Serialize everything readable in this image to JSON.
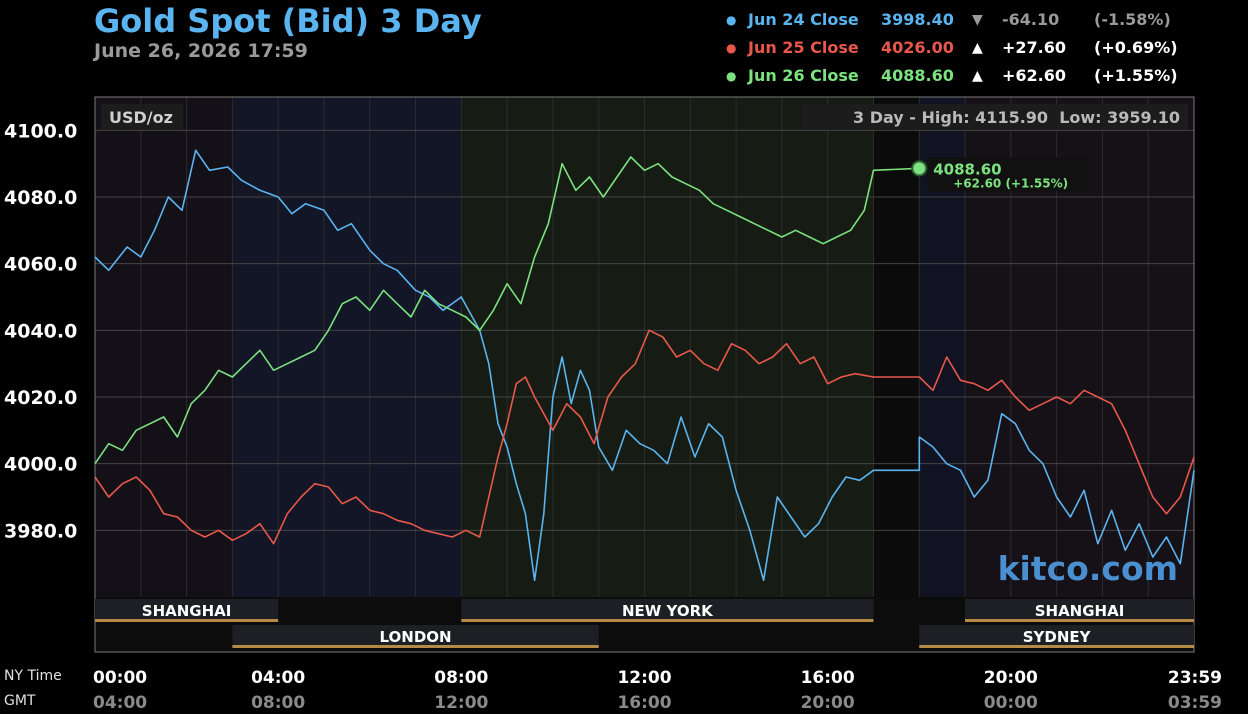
{
  "header": {
    "title": "Gold Spot (Bid) 3 Day",
    "datetime": "June 26, 2026 17:59"
  },
  "legend": [
    {
      "dot": "●",
      "name": "Jun 24 Close",
      "price": "3998.40",
      "arrow": "▼",
      "change": "-64.10",
      "pct": "(-1.58%)",
      "color": "#5ab4f0",
      "change_color": "#9a9a9a"
    },
    {
      "dot": "●",
      "name": "Jun 25 Close",
      "price": "4026.00",
      "arrow": "▲",
      "change": "+27.60",
      "pct": "(+0.69%)",
      "color": "#e8584a",
      "change_color": "#ffffff"
    },
    {
      "dot": "●",
      "name": "Jun 26 Close",
      "price": "4088.60",
      "arrow": "▲",
      "change": "+62.60",
      "pct": "(+1.55%)",
      "color": "#7be27f",
      "change_color": "#ffffff"
    }
  ],
  "chart_data": {
    "type": "line",
    "unit_label": "USD/oz",
    "range_label": "3 Day - High: 4115.90  Low: 3959.10",
    "ylim": [
      3960,
      4110
    ],
    "yticks": [
      3980,
      4000,
      4020,
      4040,
      4060,
      4080,
      4100
    ],
    "ytick_labels": [
      "3980.0",
      "4000.0",
      "4020.0",
      "4040.0",
      "4060.0",
      "4080.0",
      "4100.0"
    ],
    "x_unit": "hours (NY time)",
    "xlim": [
      0,
      24
    ],
    "x_ticks": [
      0,
      4,
      8,
      12,
      16,
      20,
      24
    ],
    "x_tick_labels_ny": [
      "00:00",
      "04:00",
      "08:00",
      "12:00",
      "16:00",
      "20:00",
      "23:59"
    ],
    "x_tick_labels_gmt": [
      "04:00",
      "08:00",
      "12:00",
      "16:00",
      "20:00",
      "00:00",
      "03:59"
    ],
    "x_row_labels": [
      "NY Time",
      "GMT"
    ],
    "last_point": {
      "price": "4088.60",
      "change": "+62.60 (+1.55%)",
      "x": 18.0,
      "y": 4088.6
    },
    "watermark": "kitco.com",
    "sessions": [
      {
        "name": "SHANGHAI",
        "start": 0,
        "end": 4,
        "row": 1
      },
      {
        "name": "NEW YORK",
        "start": 8,
        "end": 17,
        "row": 1
      },
      {
        "name": "SHANGHAI",
        "start": 19,
        "end": 24,
        "row": 1
      },
      {
        "name": "LONDON",
        "start": 3,
        "end": 11,
        "row": 2
      },
      {
        "name": "SYDNEY",
        "start": 18,
        "end": 24,
        "row": 2
      }
    ],
    "background_regions": [
      {
        "start": 0,
        "end": 3,
        "color": "#141018"
      },
      {
        "start": 3,
        "end": 8,
        "color": "#121626"
      },
      {
        "start": 8,
        "end": 17,
        "color": "#161c13"
      },
      {
        "start": 17,
        "end": 18,
        "color": "#0b0b0b"
      },
      {
        "start": 18,
        "end": 19,
        "color": "#111322"
      },
      {
        "start": 19,
        "end": 24,
        "color": "#161017"
      }
    ],
    "series": [
      {
        "name": "Jun 24 Close",
        "color": "#5ab4f0",
        "x": [
          0,
          0.3,
          0.7,
          1.0,
          1.3,
          1.6,
          1.9,
          2.2,
          2.5,
          2.9,
          3.2,
          3.6,
          4.0,
          4.3,
          4.6,
          5.0,
          5.3,
          5.6,
          6.0,
          6.3,
          6.6,
          7.0,
          7.3,
          7.6,
          8.0,
          8.2,
          8.4,
          8.6,
          8.8,
          9.0,
          9.2,
          9.4,
          9.6,
          9.8,
          10.0,
          10.2,
          10.4,
          10.6,
          10.8,
          11.0,
          11.3,
          11.6,
          11.9,
          12.2,
          12.5,
          12.8,
          13.1,
          13.4,
          13.7,
          14.0,
          14.3,
          14.6,
          14.9,
          15.2,
          15.5,
          15.8,
          16.1,
          16.4,
          16.7,
          17.0,
          17.5,
          18.0,
          18.0,
          18.3,
          18.6,
          18.9,
          19.2,
          19.5,
          19.8,
          20.1,
          20.4,
          20.7,
          21.0,
          21.3,
          21.6,
          21.9,
          22.2,
          22.5,
          22.8,
          23.1,
          23.4,
          23.7,
          24.0
        ],
        "y": [
          4062,
          4058,
          4065,
          4062,
          4070,
          4080,
          4076,
          4094,
          4088,
          4089,
          4085,
          4082,
          4080,
          4075,
          4078,
          4076,
          4070,
          4072,
          4064,
          4060,
          4058,
          4052,
          4050,
          4046,
          4050,
          4045,
          4040,
          4030,
          4012,
          4005,
          3994,
          3985,
          3965,
          3985,
          4020,
          4032,
          4018,
          4028,
          4022,
          4005,
          3998,
          4010,
          4006,
          4004,
          4000,
          4014,
          4002,
          4012,
          4008,
          3992,
          3980,
          3965,
          3990,
          3984,
          3978,
          3982,
          3990,
          3996,
          3995,
          3998,
          3998,
          3998,
          4008,
          4005,
          4000,
          3998,
          3990,
          3995,
          4015,
          4012,
          4004,
          4000,
          3990,
          3984,
          3992,
          3976,
          3986,
          3974,
          3982,
          3972,
          3978,
          3970,
          3998
        ]
      },
      {
        "name": "Jun 25 Close",
        "color": "#e8584a",
        "x": [
          0,
          0.3,
          0.6,
          0.9,
          1.2,
          1.5,
          1.8,
          2.1,
          2.4,
          2.7,
          3.0,
          3.3,
          3.6,
          3.9,
          4.2,
          4.5,
          4.8,
          5.1,
          5.4,
          5.7,
          6.0,
          6.3,
          6.6,
          6.9,
          7.2,
          7.5,
          7.8,
          8.1,
          8.4,
          8.6,
          8.8,
          9.0,
          9.2,
          9.4,
          9.6,
          9.8,
          10.0,
          10.3,
          10.6,
          10.9,
          11.2,
          11.5,
          11.8,
          12.1,
          12.4,
          12.7,
          13.0,
          13.3,
          13.6,
          13.9,
          14.2,
          14.5,
          14.8,
          15.1,
          15.4,
          15.7,
          16.0,
          16.3,
          16.6,
          17.0,
          17.5,
          18.0,
          18.3,
          18.6,
          18.9,
          19.2,
          19.5,
          19.8,
          20.1,
          20.4,
          20.7,
          21.0,
          21.3,
          21.6,
          21.9,
          22.2,
          22.5,
          22.8,
          23.1,
          23.4,
          23.7,
          24.0
        ],
        "y": [
          3996,
          3990,
          3994,
          3996,
          3992,
          3985,
          3984,
          3980,
          3978,
          3980,
          3977,
          3979,
          3982,
          3976,
          3985,
          3990,
          3994,
          3993,
          3988,
          3990,
          3986,
          3985,
          3983,
          3982,
          3980,
          3979,
          3978,
          3980,
          3978,
          3990,
          4002,
          4012,
          4024,
          4026,
          4020,
          4015,
          4010,
          4018,
          4014,
          4006,
          4020,
          4026,
          4030,
          4040,
          4038,
          4032,
          4034,
          4030,
          4028,
          4036,
          4034,
          4030,
          4032,
          4036,
          4030,
          4032,
          4024,
          4026,
          4027,
          4026,
          4026,
          4026,
          4022,
          4032,
          4025,
          4024,
          4022,
          4025,
          4020,
          4016,
          4018,
          4020,
          4018,
          4022,
          4020,
          4018,
          4010,
          4000,
          3990,
          3985,
          3990,
          4002
        ]
      },
      {
        "name": "Jun 26 Close",
        "color": "#7be27f",
        "x": [
          0,
          0.3,
          0.6,
          0.9,
          1.2,
          1.5,
          1.8,
          2.1,
          2.4,
          2.7,
          3.0,
          3.3,
          3.6,
          3.9,
          4.2,
          4.5,
          4.8,
          5.1,
          5.4,
          5.7,
          6.0,
          6.3,
          6.6,
          6.9,
          7.2,
          7.5,
          7.8,
          8.1,
          8.4,
          8.7,
          9.0,
          9.3,
          9.6,
          9.9,
          10.2,
          10.5,
          10.8,
          11.1,
          11.4,
          11.7,
          12.0,
          12.3,
          12.6,
          12.9,
          13.2,
          13.5,
          13.8,
          14.1,
          14.4,
          14.7,
          15.0,
          15.3,
          15.6,
          15.9,
          16.2,
          16.5,
          16.8,
          17.0,
          18.0
        ],
        "y": [
          4000,
          4006,
          4004,
          4010,
          4012,
          4014,
          4008,
          4018,
          4022,
          4028,
          4026,
          4030,
          4034,
          4028,
          4030,
          4032,
          4034,
          4040,
          4048,
          4050,
          4046,
          4052,
          4048,
          4044,
          4052,
          4048,
          4046,
          4044,
          4040,
          4046,
          4054,
          4048,
          4062,
          4072,
          4090,
          4082,
          4086,
          4080,
          4086,
          4092,
          4088,
          4090,
          4086,
          4084,
          4082,
          4078,
          4076,
          4074,
          4072,
          4070,
          4068,
          4070,
          4068,
          4066,
          4068,
          4070,
          4076,
          4088,
          4088.6
        ]
      }
    ]
  }
}
